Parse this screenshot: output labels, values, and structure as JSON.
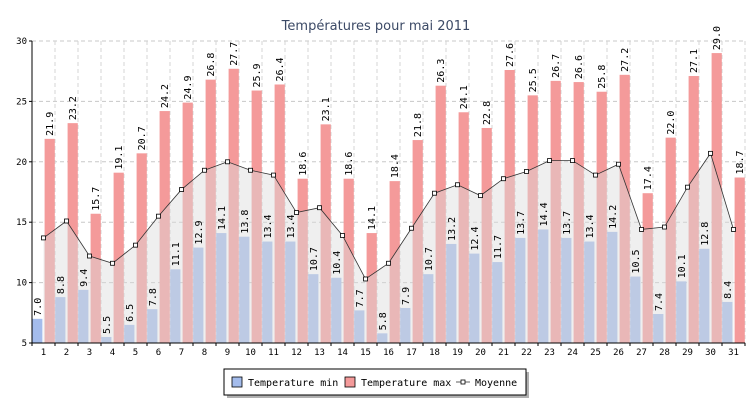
{
  "chart_data": {
    "type": "bar",
    "title": "Températures pour mai 2011",
    "xlabel": "",
    "ylabel": "",
    "ylim": [
      5,
      30
    ],
    "yticks": [
      "5",
      "10",
      "15",
      "20",
      "25",
      "30"
    ],
    "categories": [
      "1",
      "2",
      "3",
      "4",
      "5",
      "6",
      "7",
      "8",
      "9",
      "10",
      "11",
      "12",
      "13",
      "14",
      "15",
      "16",
      "17",
      "18",
      "19",
      "20",
      "21",
      "22",
      "23",
      "24",
      "25",
      "26",
      "27",
      "28",
      "29",
      "30",
      "31"
    ],
    "grid": true,
    "legend_position": "bottom",
    "series": [
      {
        "name": "Temperature min",
        "kind": "bar",
        "color": "#a4bcec",
        "values": [
          7.0,
          8.8,
          9.4,
          5.5,
          6.5,
          7.8,
          11.1,
          12.9,
          14.1,
          13.8,
          13.4,
          13.4,
          10.7,
          10.4,
          7.7,
          5.8,
          7.9,
          10.7,
          13.2,
          12.4,
          11.7,
          13.7,
          14.4,
          13.7,
          13.4,
          14.2,
          10.5,
          7.4,
          10.1,
          12.8,
          8.4
        ],
        "labels": [
          "7.0",
          "8.8",
          "9.4",
          "5.5",
          "6.5",
          "7.8",
          "11.1",
          "12.9",
          "14.1",
          "13.8",
          "13.4",
          "13.4",
          "10.7",
          "10.4",
          "7.7",
          "5.8",
          "7.9",
          "10.7",
          "13.2",
          "12.4",
          "11.7",
          "13.7",
          "14.4",
          "13.7",
          "13.4",
          "14.2",
          "10.5",
          "7.4",
          "10.1",
          "12.8",
          "8.4"
        ]
      },
      {
        "name": "Temperature max",
        "kind": "bar",
        "color": "#f49a9a",
        "values": [
          21.9,
          23.2,
          15.7,
          19.1,
          20.7,
          24.2,
          24.9,
          26.8,
          27.7,
          25.9,
          26.4,
          18.6,
          23.1,
          18.6,
          14.1,
          18.4,
          21.8,
          26.3,
          24.1,
          22.8,
          27.6,
          25.5,
          26.7,
          26.6,
          25.8,
          27.2,
          17.4,
          22.0,
          27.1,
          29.0,
          18.7
        ],
        "labels": [
          "21.9",
          "23.2",
          "15.7",
          "19.1",
          "20.7",
          "24.2",
          "24.9",
          "26.8",
          "27.7",
          "25.9",
          "26.4",
          "18.6",
          "23.1",
          "18.6",
          "14.1",
          "18.4",
          "21.8",
          "26.3",
          "24.1",
          "22.8",
          "27.6",
          "25.5",
          "26.7",
          "26.6",
          "25.8",
          "27.2",
          "17.4",
          "22.0",
          "27.1",
          "29.0",
          "18.7"
        ]
      },
      {
        "name": "Moyenne",
        "kind": "line",
        "color": "#333333",
        "values": [
          13.7,
          15.1,
          12.2,
          11.6,
          13.1,
          15.5,
          17.7,
          19.3,
          20.0,
          19.3,
          18.9,
          15.8,
          16.2,
          13.9,
          10.3,
          11.6,
          14.5,
          17.4,
          18.1,
          17.2,
          18.6,
          19.2,
          20.1,
          20.1,
          18.9,
          19.8,
          14.4,
          14.6,
          17.9,
          20.7,
          14.4
        ]
      }
    ]
  }
}
